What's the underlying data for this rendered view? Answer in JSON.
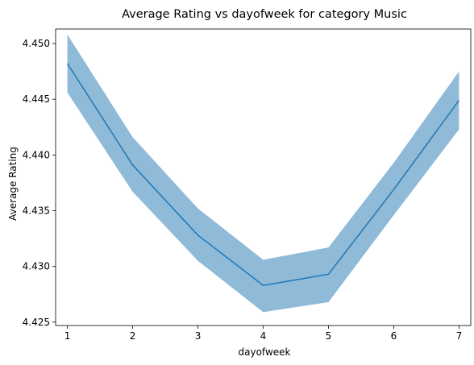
{
  "chart_data": {
    "type": "line",
    "title": "Average Rating vs dayofweek for category Music",
    "xlabel": "dayofweek",
    "ylabel": "Average Rating",
    "x": [
      1,
      2,
      3,
      4,
      5,
      6,
      7
    ],
    "x_ticks": [
      "1",
      "2",
      "3",
      "4",
      "5",
      "6",
      "7"
    ],
    "y_ticks": [
      "4.425",
      "4.430",
      "4.435",
      "4.440",
      "4.445",
      "4.450"
    ],
    "xlim": [
      0.82,
      7.18
    ],
    "ylim": [
      4.4247,
      4.4513
    ],
    "grid": false,
    "series": [
      {
        "values": [
          4.4482,
          4.4391,
          4.4328,
          4.4283,
          4.4293,
          4.4369,
          4.4449
        ],
        "lower": [
          4.4456,
          4.4367,
          4.4305,
          4.4259,
          4.4268,
          4.4346,
          4.4423
        ],
        "upper": [
          4.4508,
          4.4416,
          4.4352,
          4.4306,
          4.4317,
          4.4393,
          4.4475
        ]
      }
    ],
    "colors": {
      "line": "#1f77b4",
      "band": "#1f77b4",
      "band_opacity": 0.5
    }
  }
}
